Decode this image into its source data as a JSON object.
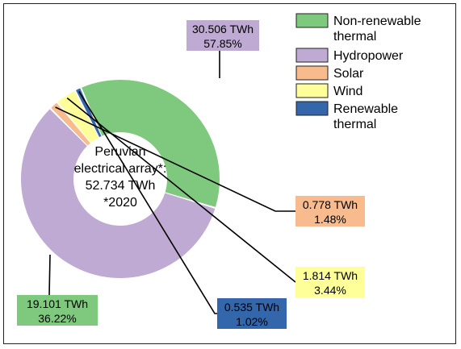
{
  "chart_data": {
    "type": "pie",
    "center_text": [
      "Peruvian",
      "electrical array*:",
      "52.734 TWh",
      "*2020"
    ],
    "slices": [
      {
        "name": "Hydropower",
        "value": 30.506,
        "percent": "57.85%",
        "value_label": "30.506 TWh",
        "color": "#bfaad3",
        "label_color": "#bfaad3"
      },
      {
        "name": "Solar",
        "value": 0.778,
        "percent": "1.48%",
        "value_label": "0.778 TWh",
        "color": "#f7bb8d",
        "label_color": "#f7bb8d"
      },
      {
        "name": "Wind",
        "value": 1.814,
        "percent": "3.44%",
        "value_label": "1.814 TWh",
        "color": "#ffff99",
        "label_color": "#ffff99"
      },
      {
        "name": "Renewable thermal",
        "value": 0.535,
        "percent": "1.02%",
        "value_label": "0.535 TWh",
        "color": "#3366aa",
        "label_color": "#3366aa"
      },
      {
        "name": "Non-renewable thermal",
        "value": 19.101,
        "percent": "36.22%",
        "value_label": "19.101 TWh",
        "color": "#7fc97f",
        "label_color": "#7fc97f"
      }
    ],
    "legend": {
      "placement": "top-right",
      "entries": [
        {
          "lines": [
            "Non-renewable",
            "thermal"
          ],
          "color": "#7fc97f"
        },
        {
          "lines": [
            "Hydropower"
          ],
          "color": "#bfaad3"
        },
        {
          "lines": [
            "Solar"
          ],
          "color": "#f7bb8d"
        },
        {
          "lines": [
            "Wind"
          ],
          "color": "#ffff99"
        },
        {
          "lines": [
            "Renewable",
            "thermal"
          ],
          "color": "#3366aa"
        }
      ]
    }
  }
}
